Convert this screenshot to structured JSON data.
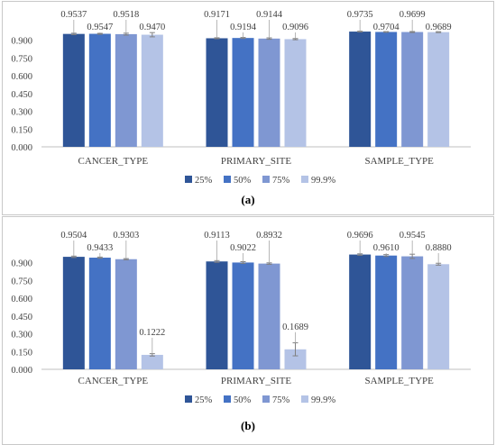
{
  "chart_data": [
    {
      "type": "bar",
      "panel_label": "(a)",
      "categories": [
        "CANCER_TYPE",
        "PRIMARY_SITE",
        "SAMPLE_TYPE"
      ],
      "series": [
        {
          "name": "25%",
          "values": [
            0.9537,
            0.9171,
            0.9735
          ],
          "labels": [
            "0.9537",
            "0.9171",
            "0.9735"
          ],
          "error": [
            0.006,
            0.004,
            0.003
          ]
        },
        {
          "name": "50%",
          "values": [
            0.9547,
            0.9194,
            0.9704
          ],
          "labels": [
            "0.9547",
            "0.9194",
            "0.9704"
          ],
          "error": [
            0.004,
            0.004,
            0.003
          ]
        },
        {
          "name": "75%",
          "values": [
            0.9518,
            0.9144,
            0.9699
          ],
          "labels": [
            "0.9518",
            "0.9144",
            "0.9699"
          ],
          "error": [
            0.008,
            0.006,
            0.004
          ]
        },
        {
          "name": "99.9%",
          "values": [
            0.947,
            0.9096,
            0.9689
          ],
          "labels": [
            "0.9470",
            "0.9096",
            "0.9689"
          ],
          "error": [
            0.018,
            0.005,
            0.004
          ]
        }
      ],
      "yticks": [
        "0.000",
        "0.150",
        "0.300",
        "0.450",
        "0.600",
        "0.750",
        "0.900"
      ],
      "ylim": [
        0,
        1.05
      ],
      "legend_position": "bottom-center",
      "grid": false
    },
    {
      "type": "bar",
      "panel_label": "(b)",
      "categories": [
        "CANCER_TYPE",
        "PRIMARY_SITE",
        "SAMPLE_TYPE"
      ],
      "series": [
        {
          "name": "25%",
          "values": [
            0.9504,
            0.9113,
            0.9696
          ],
          "labels": [
            "0.9504",
            "0.9113",
            "0.9696"
          ],
          "error": [
            0.006,
            0.007,
            0.006
          ]
        },
        {
          "name": "50%",
          "values": [
            0.9433,
            0.9022,
            0.961
          ],
          "labels": [
            "0.9433",
            "0.9022",
            "0.9610"
          ],
          "error": [
            0.005,
            0.007,
            0.008
          ]
        },
        {
          "name": "75%",
          "values": [
            0.9303,
            0.8932,
            0.9545
          ],
          "labels": [
            "0.9303",
            "0.8932",
            "0.9545"
          ],
          "error": [
            0.005,
            0.006,
            0.018
          ]
        },
        {
          "name": "99.9%",
          "values": [
            0.1222,
            0.1689,
            0.888
          ],
          "labels": [
            "0.1222",
            "0.1689",
            "0.8880"
          ],
          "error": [
            0.01,
            0.055,
            0.008
          ]
        }
      ],
      "yticks": [
        "0.000",
        "0.150",
        "0.300",
        "0.450",
        "0.600",
        "0.750",
        "0.900"
      ],
      "ylim": [
        0,
        1.05
      ],
      "legend_position": "bottom-center",
      "grid": false
    }
  ],
  "colors": [
    "#2f5597",
    "#4472c4",
    "#7f97d2",
    "#b4c3e6"
  ]
}
